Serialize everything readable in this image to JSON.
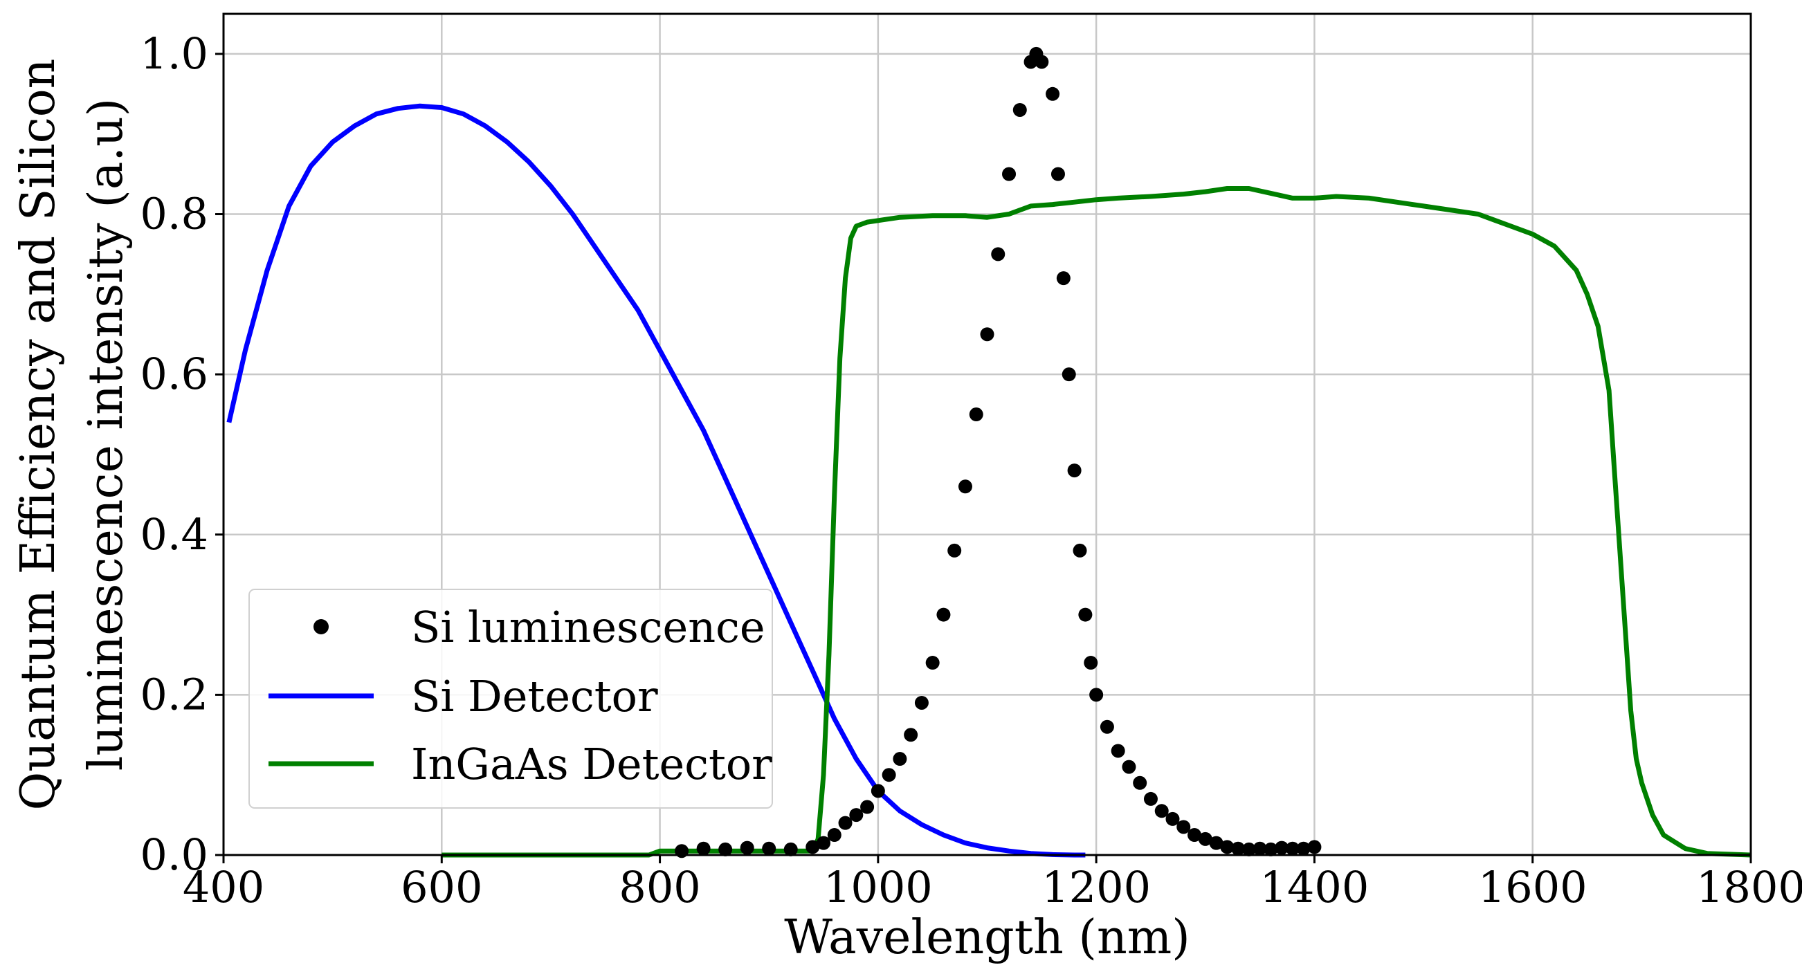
{
  "chart_data": {
    "type": "line",
    "title": "",
    "xlabel": "Wavelength (nm)",
    "ylabel_line1": "Quantum Efficiency and Silicon",
    "ylabel_line2": "luminescence intensity (a.u)",
    "xlim": [
      400,
      1800
    ],
    "ylim": [
      0.0,
      1.05
    ],
    "xticks": [
      400,
      600,
      800,
      1000,
      1200,
      1400,
      1600,
      1800
    ],
    "xtick_labels": [
      "400",
      "600",
      "800",
      "1000",
      "1200",
      "1400",
      "1600",
      "1800"
    ],
    "yticks": [
      0.0,
      0.2,
      0.4,
      0.6,
      0.8,
      1.0
    ],
    "ytick_labels": [
      "0.0",
      "0.2",
      "0.4",
      "0.6",
      "0.8",
      "1.0"
    ],
    "grid": true,
    "legend_position": "lower-left",
    "series": [
      {
        "name": "Si luminescence",
        "style": "markers",
        "color": "#000000",
        "x": [
          820,
          840,
          860,
          880,
          900,
          920,
          940,
          950,
          960,
          970,
          980,
          990,
          1000,
          1010,
          1020,
          1030,
          1040,
          1050,
          1060,
          1070,
          1080,
          1090,
          1100,
          1110,
          1120,
          1130,
          1140,
          1145,
          1150,
          1160,
          1165,
          1170,
          1175,
          1180,
          1185,
          1190,
          1195,
          1200,
          1210,
          1220,
          1230,
          1240,
          1250,
          1260,
          1270,
          1280,
          1290,
          1300,
          1310,
          1320,
          1330,
          1340,
          1350,
          1360,
          1370,
          1380,
          1390,
          1400
        ],
        "y": [
          0.005,
          0.008,
          0.007,
          0.009,
          0.008,
          0.007,
          0.01,
          0.015,
          0.025,
          0.04,
          0.05,
          0.06,
          0.08,
          0.1,
          0.12,
          0.15,
          0.19,
          0.24,
          0.3,
          0.38,
          0.46,
          0.55,
          0.65,
          0.75,
          0.85,
          0.93,
          0.99,
          1.0,
          0.99,
          0.95,
          0.85,
          0.72,
          0.6,
          0.48,
          0.38,
          0.3,
          0.24,
          0.2,
          0.16,
          0.13,
          0.11,
          0.09,
          0.07,
          0.055,
          0.045,
          0.035,
          0.025,
          0.02,
          0.015,
          0.01,
          0.008,
          0.007,
          0.008,
          0.007,
          0.009,
          0.008,
          0.008,
          0.01
        ]
      },
      {
        "name": "Si Detector",
        "style": "line",
        "color": "#0000ff",
        "x": [
          405,
          420,
          440,
          460,
          480,
          500,
          520,
          540,
          560,
          580,
          600,
          620,
          640,
          660,
          680,
          700,
          720,
          740,
          760,
          780,
          800,
          820,
          840,
          860,
          880,
          900,
          920,
          940,
          960,
          980,
          1000,
          1020,
          1040,
          1060,
          1080,
          1100,
          1120,
          1140,
          1160,
          1180,
          1190
        ],
        "y": [
          0.54,
          0.63,
          0.73,
          0.81,
          0.86,
          0.89,
          0.91,
          0.925,
          0.932,
          0.935,
          0.933,
          0.925,
          0.91,
          0.89,
          0.865,
          0.835,
          0.8,
          0.76,
          0.72,
          0.68,
          0.63,
          0.58,
          0.53,
          0.47,
          0.41,
          0.35,
          0.29,
          0.23,
          0.17,
          0.12,
          0.08,
          0.055,
          0.038,
          0.025,
          0.015,
          0.009,
          0.005,
          0.002,
          0.0005,
          0.0,
          0.0
        ]
      },
      {
        "name": "InGaAs Detector",
        "style": "line",
        "color": "#008000",
        "x": [
          600,
          700,
          790,
          800,
          850,
          900,
          940,
          945,
          950,
          955,
          960,
          965,
          970,
          975,
          980,
          990,
          1000,
          1020,
          1050,
          1080,
          1100,
          1120,
          1140,
          1160,
          1180,
          1200,
          1220,
          1250,
          1280,
          1300,
          1320,
          1340,
          1360,
          1380,
          1400,
          1420,
          1450,
          1500,
          1550,
          1580,
          1600,
          1620,
          1640,
          1650,
          1660,
          1670,
          1675,
          1680,
          1685,
          1690,
          1695,
          1700,
          1710,
          1720,
          1740,
          1760,
          1800
        ],
        "y": [
          0.0,
          0.0,
          0.0,
          0.005,
          0.005,
          0.005,
          0.005,
          0.02,
          0.1,
          0.25,
          0.45,
          0.62,
          0.72,
          0.77,
          0.785,
          0.79,
          0.792,
          0.796,
          0.798,
          0.798,
          0.796,
          0.8,
          0.81,
          0.812,
          0.815,
          0.818,
          0.82,
          0.822,
          0.825,
          0.828,
          0.832,
          0.832,
          0.826,
          0.82,
          0.82,
          0.822,
          0.82,
          0.81,
          0.8,
          0.785,
          0.775,
          0.76,
          0.73,
          0.7,
          0.66,
          0.58,
          0.48,
          0.38,
          0.28,
          0.18,
          0.12,
          0.09,
          0.05,
          0.025,
          0.008,
          0.002,
          0.0
        ]
      }
    ]
  }
}
